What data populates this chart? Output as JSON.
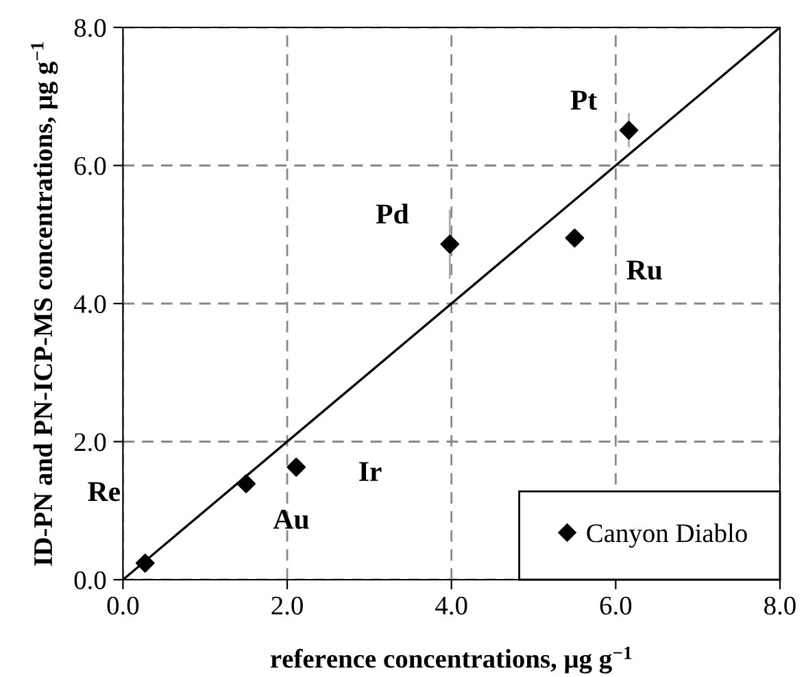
{
  "chart_data": {
    "type": "scatter",
    "xlabel": "reference concentrations, μg g$^{−1}$",
    "ylabel": "ID-PN and PN-ICP-MS concentrations, μg g$^{−1}$",
    "xlim": [
      0,
      8
    ],
    "ylim": [
      0,
      8
    ],
    "xticks": [
      {
        "value": 0,
        "label": "0.0"
      },
      {
        "value": 2,
        "label": "2.0"
      },
      {
        "value": 4,
        "label": "4.0"
      },
      {
        "value": 6,
        "label": "6.0"
      },
      {
        "value": 8,
        "label": "8.0"
      }
    ],
    "yticks": [
      {
        "value": 0,
        "label": "0.0"
      },
      {
        "value": 2,
        "label": "2.0"
      },
      {
        "value": 4,
        "label": "4.0"
      },
      {
        "value": 6,
        "label": "6.0"
      },
      {
        "value": 8,
        "label": "8.0"
      }
    ],
    "grid": true,
    "legend": "bottom right",
    "marker": "diamond",
    "series": [
      {
        "name": "Canyon Diablo",
        "color": "#000000",
        "x": [
          0.27,
          1.5,
          2.11,
          3.98,
          5.5,
          6.16
        ],
        "values": [
          0.24,
          1.39,
          1.63,
          4.86,
          4.95,
          6.51
        ],
        "errors": [
          null,
          null,
          null,
          0.5,
          null,
          0.25
        ]
      },
      {
        "type": "line",
        "color": "#000000",
        "marker": "none",
        "x": [
          0,
          8
        ],
        "values": [
          0,
          8
        ]
      }
    ],
    "annotations": [
      {
        "text": "Re",
        "x": 0.27,
        "y": 0.24
      },
      {
        "text": "Au",
        "x": 1.5,
        "y": 1.39
      },
      {
        "text": "Ir",
        "x": 2.11,
        "y": 1.63
      },
      {
        "text": "Pd",
        "x": 3.98,
        "y": 4.86
      },
      {
        "text": "Ru",
        "x": 5.5,
        "y": 4.95
      },
      {
        "text": "Pt",
        "x": 6.16,
        "y": 6.51
      }
    ]
  }
}
